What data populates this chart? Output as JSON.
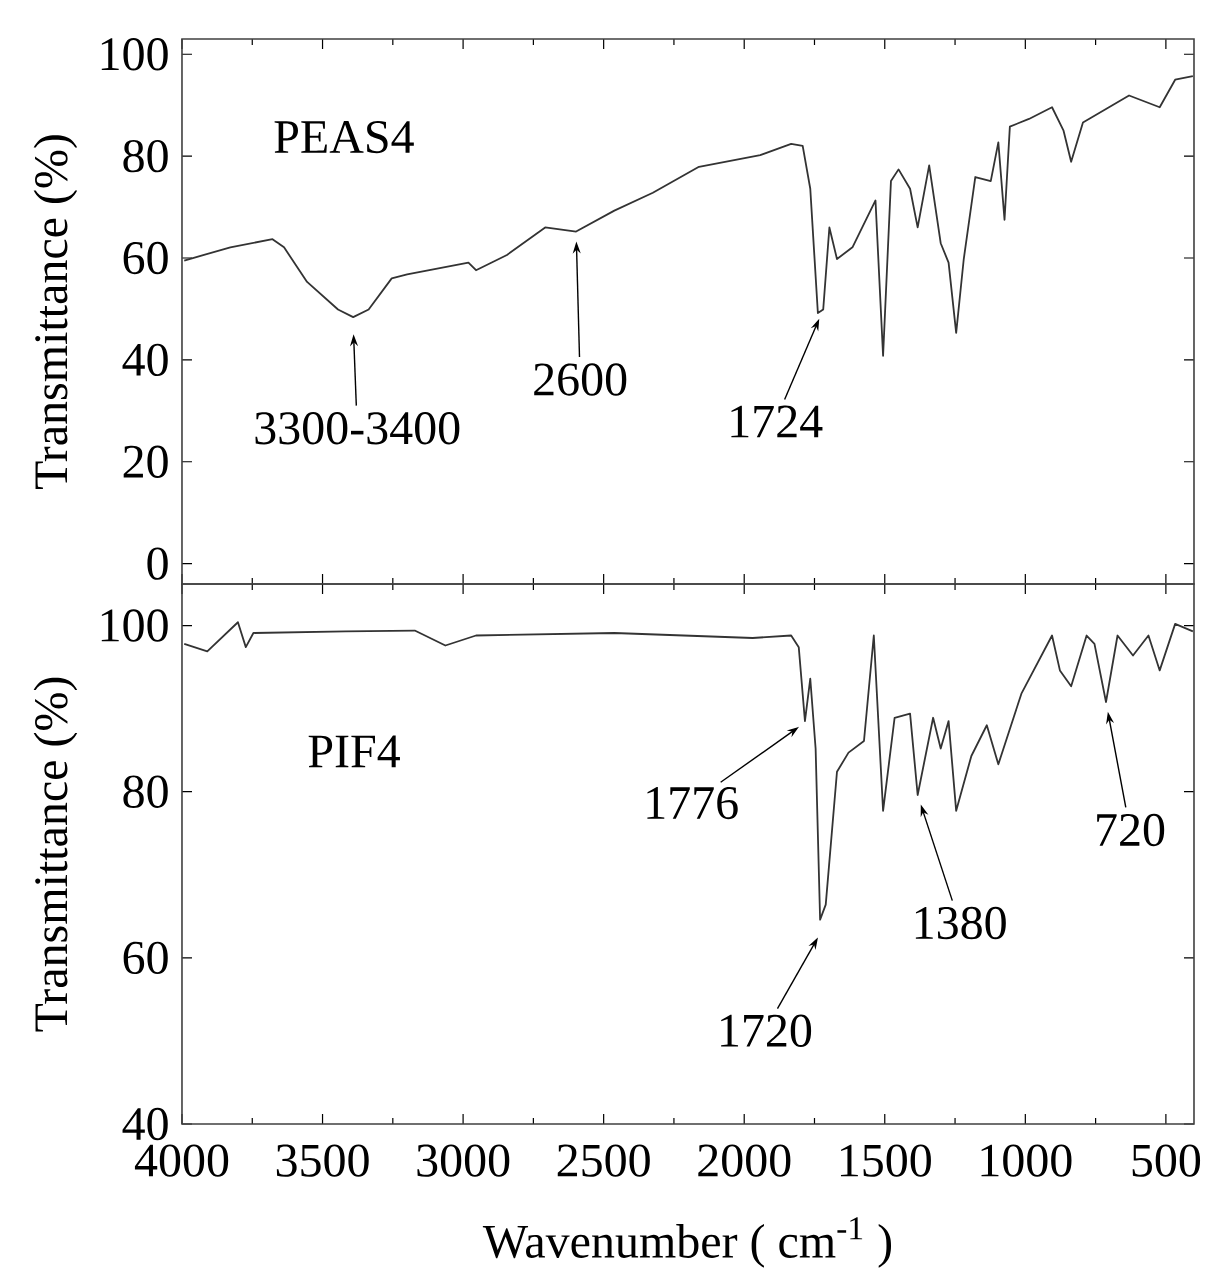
{
  "chart_data": [
    {
      "type": "line",
      "ylabel": "Transmittance (%)",
      "xlim": [
        4000,
        400
      ],
      "ylim": [
        -4,
        103
      ],
      "xticks": [
        4000,
        3500,
        3000,
        2500,
        2000,
        1500,
        1000,
        500
      ],
      "yticks": [
        0,
        20,
        40,
        60,
        80,
        100
      ],
      "tick_labels": "y",
      "series": [
        {
          "name": "PEAS4",
          "color": "#333333",
          "x": [
            3992,
            3828,
            3678,
            3637,
            3555,
            3445,
            3391,
            3336,
            3254,
            3199,
            2981,
            2954,
            2844,
            2708,
            2598,
            2462,
            2325,
            2161,
            1943,
            1833,
            1792,
            1765,
            1738,
            1719,
            1697,
            1670,
            1615,
            1533,
            1506,
            1478,
            1451,
            1410,
            1383,
            1342,
            1301,
            1273,
            1246,
            1219,
            1178,
            1123,
            1096,
            1074,
            1055,
            987,
            905,
            864,
            837,
            795,
            631,
            522,
            467,
            404
          ],
          "values": [
            59.5,
            62.1,
            63.7,
            62.1,
            55.3,
            49.9,
            48.4,
            49.9,
            56.0,
            56.8,
            59.1,
            57.6,
            60.6,
            66.0,
            65.2,
            69.3,
            72.8,
            77.9,
            80.2,
            82.4,
            82.0,
            73.6,
            49.2,
            49.9,
            66.0,
            59.8,
            62.1,
            71.3,
            40.8,
            75.1,
            77.4,
            73.6,
            66.0,
            78.2,
            62.9,
            59.1,
            45.3,
            59.8,
            75.9,
            75.1,
            82.7,
            67.5,
            85.8,
            87.3,
            89.6,
            85.0,
            78.9,
            86.6,
            91.9,
            89.6,
            95.0,
            95.7
          ]
        }
      ],
      "annotations": [
        {
          "text": "3300-3400",
          "x": 3391,
          "y": 47
        },
        {
          "text": "2600",
          "x": 2598,
          "y": 65.2
        },
        {
          "text": "1724",
          "x": 1719,
          "y": 49.9
        }
      ]
    },
    {
      "type": "line",
      "xlabel": "Wavenumber ( cm$^{-1}$ )",
      "ylabel": "Transmittance (%)",
      "xlim": [
        4000,
        400
      ],
      "ylim": [
        40,
        105
      ],
      "xticks": [
        4000,
        3500,
        3000,
        2500,
        2000,
        1500,
        1000,
        500
      ],
      "yticks": [
        40,
        60,
        80,
        100
      ],
      "series": [
        {
          "name": "PIF4",
          "color": "#333333",
          "x": [
            3992,
            3910,
            3801,
            3773,
            3746,
            3418,
            3172,
            3063,
            2954,
            2462,
            1970,
            1833,
            1806,
            1784,
            1765,
            1746,
            1730,
            1710,
            1670,
            1629,
            1574,
            1539,
            1506,
            1465,
            1410,
            1383,
            1328,
            1301,
            1273,
            1246,
            1192,
            1137,
            1096,
            1014,
            905,
            877,
            837,
            782,
            754,
            713,
            672,
            617,
            562,
            522,
            467,
            404
          ],
          "values": [
            97.8,
            96.9,
            100.4,
            97.4,
            99.1,
            99.3,
            99.4,
            97.6,
            98.8,
            99.1,
            98.5,
            98.8,
            97.4,
            88.5,
            93.6,
            85.2,
            64.6,
            66.4,
            82.4,
            84.7,
            86.1,
            98.8,
            77.7,
            88.9,
            89.4,
            79.6,
            88.9,
            85.2,
            88.5,
            77.7,
            84.3,
            88.0,
            83.3,
            91.8,
            98.8,
            94.6,
            92.7,
            98.8,
            97.8,
            90.8,
            98.8,
            96.4,
            98.8,
            94.6,
            100.2,
            99.3
          ]
        }
      ],
      "annotations": [
        {
          "text": "1776",
          "x": 1776,
          "y": 88.5
        },
        {
          "text": "1720",
          "x": 1720,
          "y": 63.5
        },
        {
          "text": "1380",
          "x": 1383,
          "y": 79.6
        },
        {
          "text": "720",
          "x": 713,
          "y": 90.8
        }
      ]
    }
  ]
}
